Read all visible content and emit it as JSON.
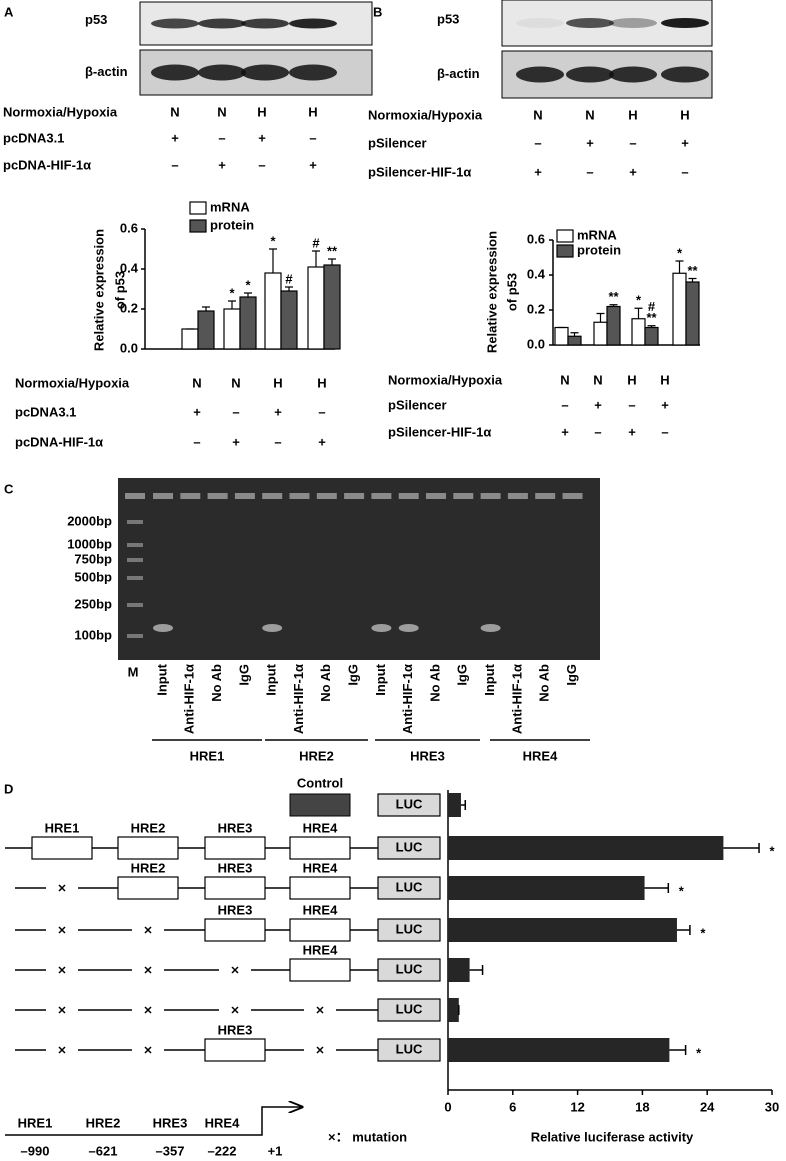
{
  "panel_labels": [
    "A",
    "B",
    "C",
    "D"
  ],
  "blots": [
    {
      "bands": [
        "p53",
        "β-actin"
      ],
      "conditions": [
        {
          "label": "Normoxia/Hypoxia",
          "values": [
            "N",
            "N",
            "H",
            "H"
          ]
        },
        {
          "label": "pcDNA3.1",
          "values": [
            "+",
            "–",
            "+",
            "–"
          ]
        },
        {
          "label": "pcDNA-HIF-1α",
          "values": [
            "–",
            "+",
            "–",
            "+"
          ]
        }
      ]
    },
    {
      "bands": [
        "p53",
        "β-actin"
      ],
      "conditions": [
        {
          "label": "Normoxia/Hypoxia",
          "values": [
            "N",
            "N",
            "H",
            "H"
          ]
        },
        {
          "label": "pSilencer",
          "values": [
            "–",
            "+",
            "–",
            "+"
          ]
        },
        {
          "label": "pSilencer-HIF-1α",
          "values": [
            "+",
            "–",
            "+",
            "–"
          ]
        }
      ]
    }
  ],
  "chart_data": [
    {
      "type": "bar",
      "y_label": [
        "Relative expression",
        "of p53"
      ],
      "ylim": [
        0,
        0.6
      ],
      "yticks": [
        {
          "value": 0,
          "label": "0.0"
        },
        0.2,
        0.4,
        0.6
      ],
      "series": [
        {
          "name": "mRNA",
          "color": "#ffffff",
          "values": [
            0.1,
            0.2,
            0.38,
            0.41
          ],
          "errors": [
            0,
            0.04,
            0.12,
            0.08
          ],
          "annotations": [
            null,
            [
              "*"
            ],
            [
              "*"
            ],
            [
              "#"
            ]
          ]
        },
        {
          "name": "protein",
          "color": "#555555",
          "values": [
            0.19,
            0.26,
            0.29,
            0.42
          ],
          "errors": [
            0.02,
            0.02,
            0.02,
            0.03
          ],
          "annotations": [
            null,
            [
              "*"
            ],
            [
              "#"
            ],
            [
              "**"
            ]
          ]
        }
      ],
      "conditions": [
        {
          "label": "Normoxia/Hypoxia",
          "values": [
            "N",
            "N",
            "H",
            "H"
          ]
        },
        {
          "label": "pcDNA3.1",
          "values": [
            "+",
            "–",
            "+",
            "–"
          ]
        },
        {
          "label": "pcDNA-HIF-1α",
          "values": [
            "–",
            "+",
            "–",
            "+"
          ]
        }
      ]
    },
    {
      "type": "bar",
      "y_label": [
        "Relative expression",
        "of p53"
      ],
      "ylim": [
        0,
        0.6
      ],
      "yticks": [
        {
          "value": 0,
          "label": "0.0"
        },
        0.2,
        0.4,
        0.6
      ],
      "series": [
        {
          "name": "mRNA",
          "color": "#ffffff",
          "values": [
            0.1,
            0.13,
            0.15,
            0.41
          ],
          "errors": [
            0,
            0.05,
            0.06,
            0.07
          ],
          "annotations": [
            null,
            null,
            [
              "*"
            ],
            [
              "*"
            ]
          ]
        },
        {
          "name": "protein",
          "color": "#555555",
          "values": [
            0.05,
            0.22,
            0.1,
            0.36
          ],
          "errors": [
            0.02,
            0.01,
            0.01,
            0.02
          ],
          "annotations": [
            null,
            [
              "**"
            ],
            [
              "#",
              "**"
            ],
            [
              "**"
            ]
          ]
        }
      ],
      "conditions": [
        {
          "label": "Normoxia/Hypoxia",
          "values": [
            "N",
            "N",
            "H",
            "H"
          ]
        },
        {
          "label": "pSilencer",
          "values": [
            "–",
            "+",
            "–",
            "+"
          ]
        },
        {
          "label": "pSilencer-HIF-1α",
          "values": [
            "+",
            "–",
            "+",
            "–"
          ]
        }
      ]
    },
    {
      "type": "hbar",
      "color": "#262626",
      "values": [
        1.2,
        25.5,
        18.2,
        21.2,
        2.0,
        1.0,
        20.5
      ],
      "errors": [
        0.4,
        3.3,
        2.2,
        1.2,
        1.2,
        0,
        1.5
      ],
      "annotations": [
        null,
        "*",
        "*",
        "*",
        null,
        null,
        "*"
      ],
      "xlim": [
        0,
        30
      ],
      "xticks": [
        0,
        6,
        12,
        18,
        24,
        30
      ],
      "x_label": "Relative luciferase activity"
    }
  ],
  "gel": {
    "markers": [
      "2000bp",
      "1000bp",
      "750bp",
      "500bp",
      "250bp",
      "100bp"
    ],
    "marker_lane": "M",
    "lanes": [
      "Input",
      "Anti-HIF-1α",
      "No Ab",
      "IgG"
    ],
    "groups": [
      "HRE1",
      "HRE2",
      "HRE3",
      "HRE4"
    ]
  },
  "constructs": {
    "control": "Control",
    "reporter": "LUC",
    "rows": [
      [
        "HRE1",
        "HRE2",
        "HRE3",
        "HRE4"
      ],
      [
        null,
        "HRE2",
        "HRE3",
        "HRE4"
      ],
      [
        null,
        null,
        "HRE3",
        "HRE4"
      ],
      [
        null,
        null,
        null,
        "HRE4"
      ],
      [
        null,
        null,
        null,
        null
      ],
      [
        null,
        null,
        "HRE3",
        null
      ]
    ]
  },
  "promoter_map": {
    "elements": [
      "HRE1",
      "HRE2",
      "HRE3",
      "HRE4"
    ],
    "positions": [
      "–990",
      "–621",
      "–357",
      "–222",
      "+1"
    ],
    "legend": "×： mutation"
  }
}
